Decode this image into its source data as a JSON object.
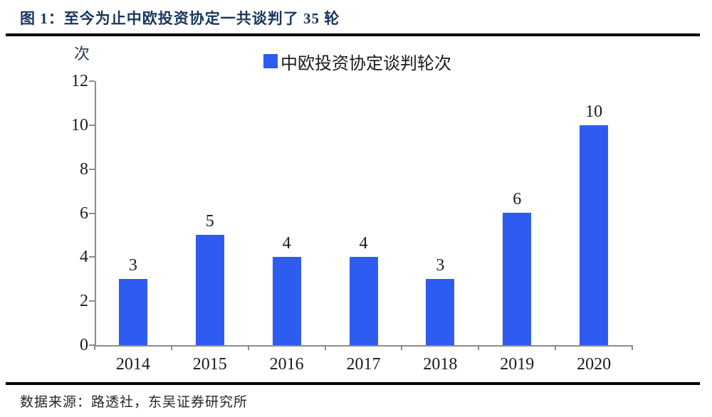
{
  "figure": {
    "title": "图 1：至今为止中欧投资协定一共谈判了 35 轮",
    "source": "数据来源：路透社，东吴证券研究所"
  },
  "chart_data": {
    "type": "bar",
    "legend": "中欧投资协定谈判轮次",
    "unit_label": "次",
    "categories": [
      "2014",
      "2015",
      "2016",
      "2017",
      "2018",
      "2019",
      "2020"
    ],
    "values": [
      3,
      5,
      4,
      4,
      3,
      6,
      10
    ],
    "yticks": [
      0,
      2,
      4,
      6,
      8,
      10,
      12
    ],
    "ylim": [
      0,
      12
    ],
    "xlabel": "",
    "ylabel": "次",
    "grid": false,
    "legend_position": "top-center"
  },
  "colors": {
    "bar": "#2E5BF0",
    "title": "#17375E",
    "axis": "#8C8C8C",
    "text": "#1A1A1A",
    "rule": "#000000"
  }
}
